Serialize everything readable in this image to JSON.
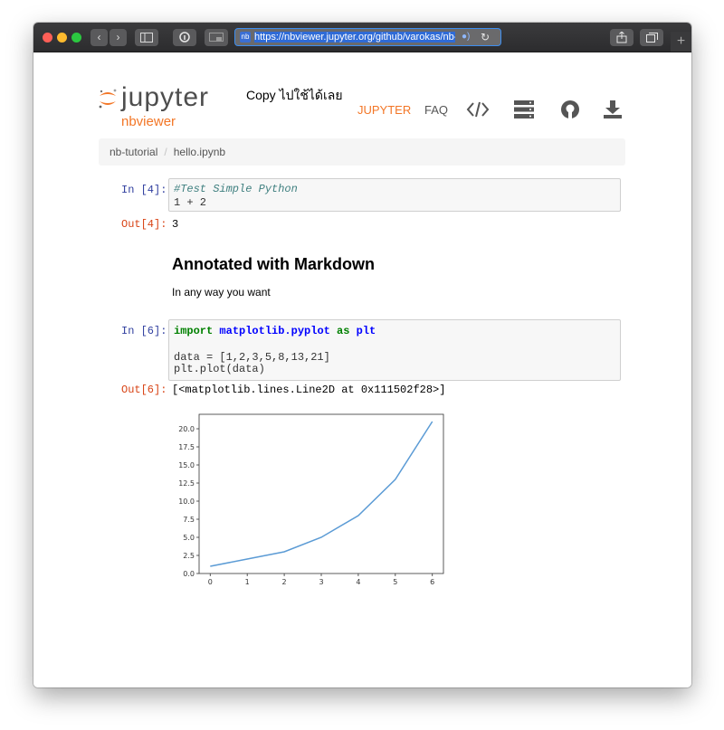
{
  "browser": {
    "url": "https://nbviewer.jupyter.org/github/varokas/nb-tuto",
    "favicon_text": "nb"
  },
  "header": {
    "logo_text": "jupyter",
    "logo_sub": "nbviewer",
    "thai_text": "Copy ไปใช้ได้เลย",
    "nav_jupyter": "JUPYTER",
    "nav_faq": "FAQ"
  },
  "breadcrumb": {
    "items": [
      "nb-tutorial",
      "hello.ipynb"
    ]
  },
  "cells": {
    "cell1": {
      "in_prompt": "In [4]:",
      "comment": "#Test Simple Python",
      "line2": "1 + 2",
      "out_prompt": "Out[4]:",
      "output": "3"
    },
    "markdown": {
      "heading": "Annotated with Markdown",
      "text": "In any way you want"
    },
    "cell2": {
      "in_prompt": "In [6]:",
      "kw_import": "import",
      "module": "matplotlib.pyplot",
      "kw_as": "as",
      "alias": "plt",
      "line3": "data = [1,2,3,5,8,13,21]",
      "line4": "plt.plot(data)",
      "out_prompt": "Out[6]:",
      "output": "[<matplotlib.lines.Line2D at 0x111502f28>]"
    }
  },
  "chart_data": {
    "type": "line",
    "x": [
      0,
      1,
      2,
      3,
      4,
      5,
      6
    ],
    "values": [
      1,
      2,
      3,
      5,
      8,
      13,
      21
    ],
    "xticks": [
      "0",
      "1",
      "2",
      "3",
      "4",
      "5",
      "6"
    ],
    "yticks": [
      "0.0",
      "2.5",
      "5.0",
      "7.5",
      "10.0",
      "12.5",
      "15.0",
      "17.5",
      "20.0"
    ],
    "ylim": [
      0,
      22
    ],
    "xlim": [
      -0.3,
      6.3
    ],
    "line_color": "#5b9bd5",
    "title": "",
    "xlabel": "",
    "ylabel": ""
  },
  "colors": {
    "accent": "#f37626",
    "in_prompt": "#303f9f",
    "out_prompt": "#d84315"
  }
}
